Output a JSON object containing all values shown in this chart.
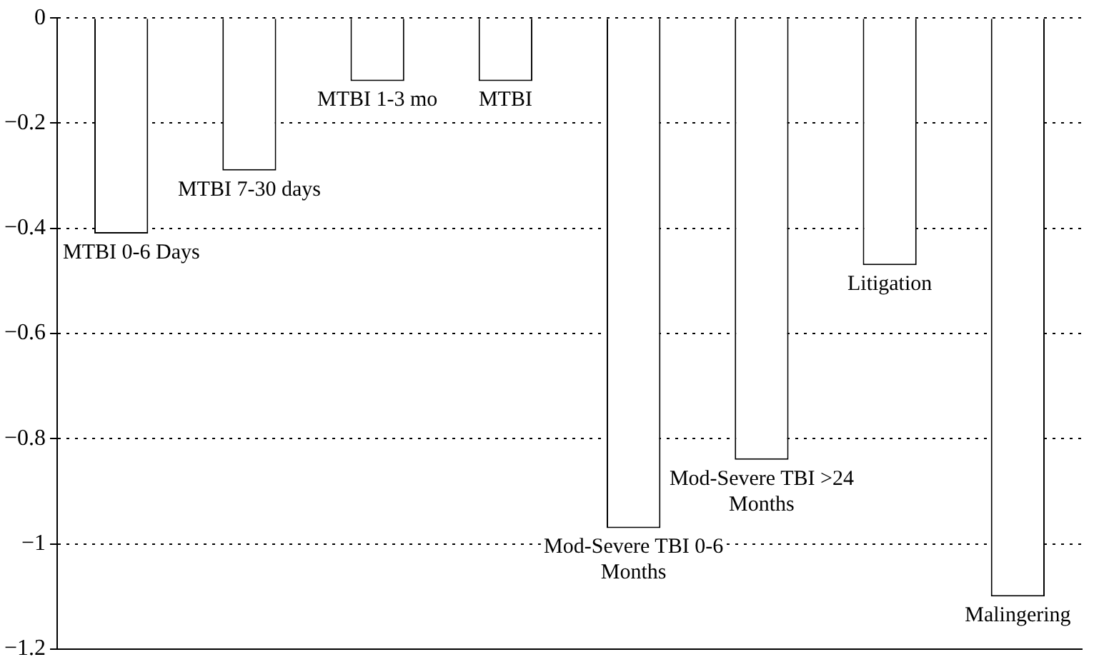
{
  "chart_data": {
    "type": "bar",
    "categories": [
      "MTBI 0-6 Days",
      "MTBI 7-30 days",
      "MTBI 1-3 mo",
      "MTBI",
      "Mod-Severe TBI 0-6 Months",
      "Mod-Severe TBI >24 Months",
      "Litigation",
      "Malingering"
    ],
    "values": [
      -0.41,
      -0.29,
      -0.12,
      -0.12,
      -0.97,
      -0.84,
      -0.47,
      -1.1
    ],
    "color": "#ffffff",
    "ylim": [
      -1.2,
      0
    ],
    "yticks": [
      0,
      -0.2,
      -0.4,
      -0.6,
      -0.8,
      -1,
      -1.2
    ],
    "grid": "y",
    "legend": false,
    "tick_labels": "y"
  }
}
